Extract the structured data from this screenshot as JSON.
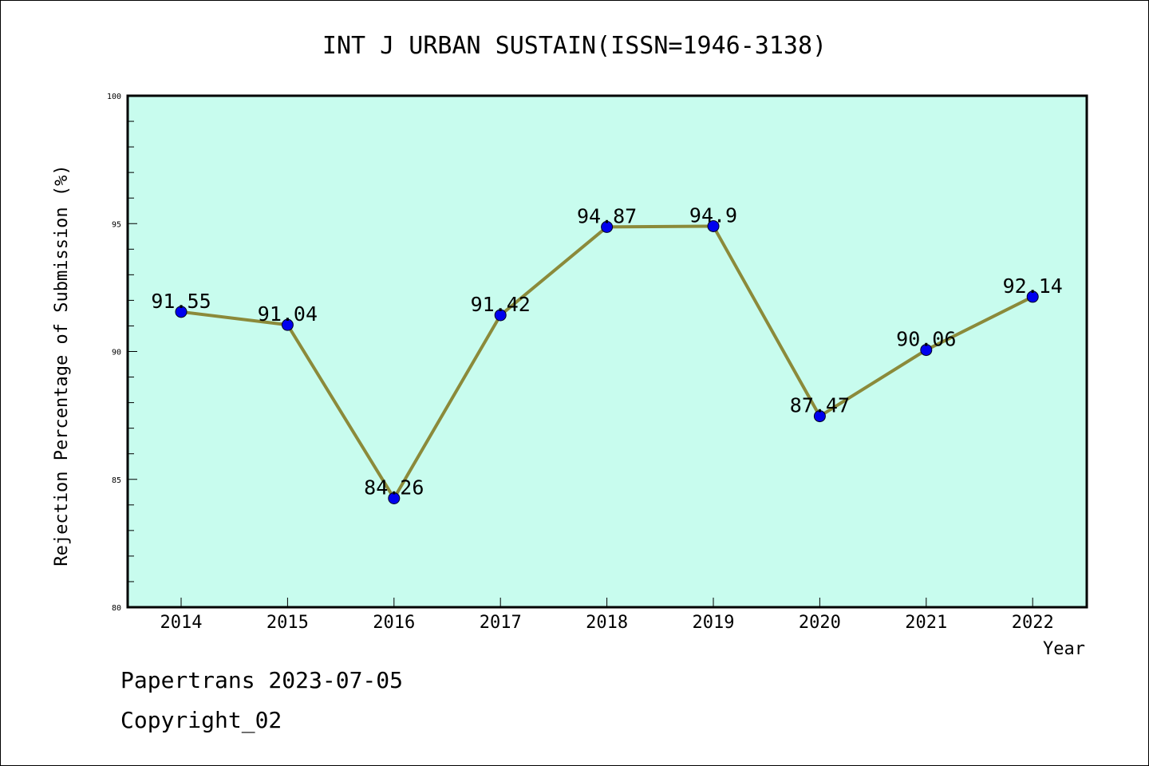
{
  "chart_data": {
    "type": "line",
    "title": "INT J URBAN SUSTAIN(ISSN=1946-3138)",
    "xlabel": "Year",
    "ylabel": "Rejection Percentage of Submission (%)",
    "categories": [
      "2014",
      "2015",
      "2016",
      "2017",
      "2018",
      "2019",
      "2020",
      "2021",
      "2022"
    ],
    "values": [
      91.55,
      91.04,
      84.26,
      91.42,
      94.87,
      94.9,
      87.47,
      90.06,
      92.14
    ],
    "data_labels": [
      "91.55",
      "91.04",
      "84.26",
      "91.42",
      "94.87",
      "94.9",
      "87.47",
      "90.06",
      "92.14"
    ],
    "ylim": [
      80,
      100
    ],
    "yticks": [
      "80",
      "85",
      "90",
      "95",
      "100"
    ],
    "grid": false,
    "colors": {
      "plot_background": "#c8fcee",
      "line": "#8b8a3a",
      "marker": "#0000ee"
    }
  },
  "footer": {
    "line1": "Papertrans 2023-07-05",
    "line2": "Copyright_02"
  }
}
